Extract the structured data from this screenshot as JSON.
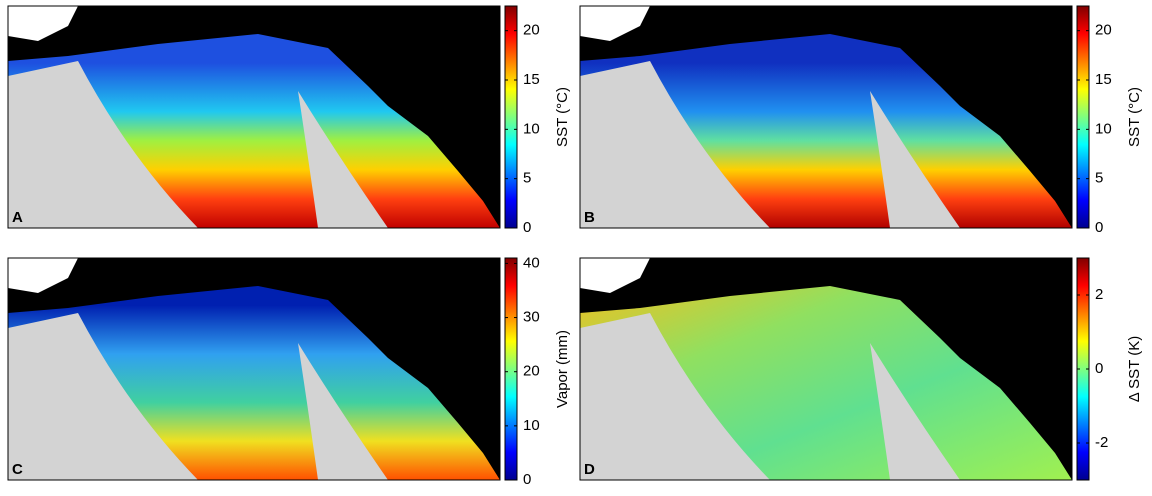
{
  "chart_data": [
    {
      "type": "map",
      "panel_label": "A",
      "colorbar_label": "SST (°C)",
      "clim": [
        0,
        22.5
      ],
      "cticks": [
        0,
        5,
        10,
        15,
        20
      ],
      "palette": "sst"
    },
    {
      "type": "map",
      "panel_label": "B",
      "colorbar_label": "SST (°C)",
      "clim": [
        0,
        22.5
      ],
      "cticks": [
        0,
        5,
        10,
        15,
        20
      ],
      "palette": "sst2"
    },
    {
      "type": "map",
      "panel_label": "C",
      "colorbar_label": "Vapor (mm)",
      "clim": [
        0,
        41
      ],
      "cticks": [
        0,
        10,
        20,
        30,
        40
      ],
      "palette": "vapor"
    },
    {
      "type": "map",
      "panel_label": "D",
      "colorbar_label": "Δ SST (K)",
      "clim": [
        -3,
        3
      ],
      "cticks": [
        -2,
        0,
        2
      ],
      "palette": "dsst"
    }
  ]
}
